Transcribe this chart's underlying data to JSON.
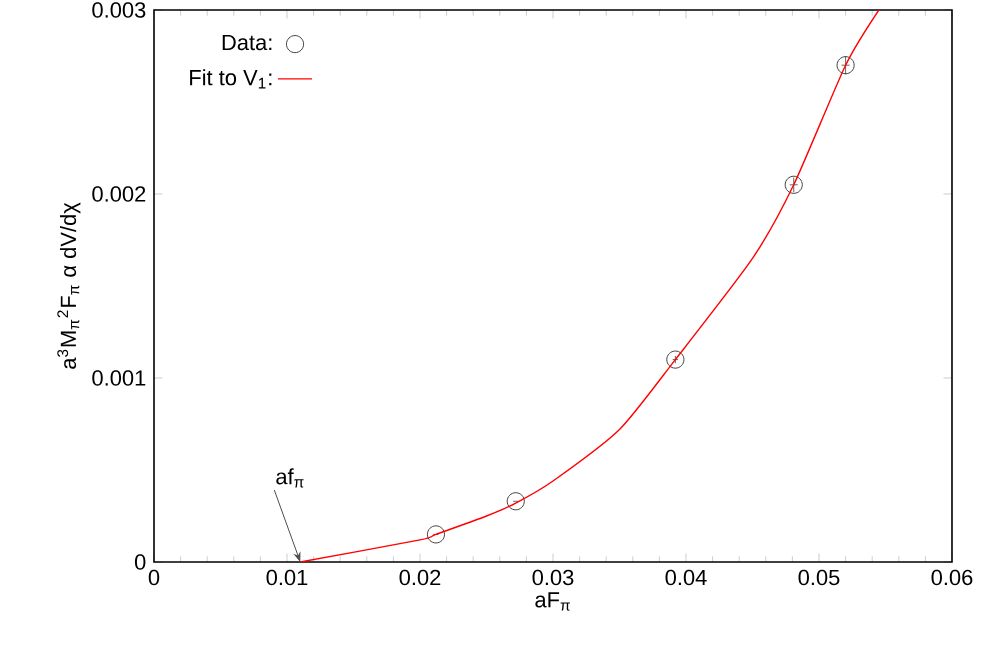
{
  "chart_data": {
    "type": "scatter",
    "xlabel": "aF$_{π}$",
    "ylabel": "a$^{3}$M$_{π}$$^{2}$F$_{π}$ α dV/dχ",
    "xlim": [
      0,
      0.06
    ],
    "xticks": [
      0,
      0.01,
      0.02,
      0.03,
      0.04,
      0.05,
      0.06
    ],
    "ylim": [
      0,
      0.003
    ],
    "yticks": [
      0,
      0.001,
      0.002,
      0.003
    ],
    "legend": "top left",
    "annotations": [
      {
        "text": "af$_{π}$",
        "x": 0.011,
        "y": 0
      }
    ],
    "series": [
      {
        "name": "Data:",
        "color": "#404040",
        "marker": "circle",
        "x": [
          0.0212,
          0.0272,
          0.0392,
          0.0481,
          0.052
        ],
        "values": [
          0.00015,
          0.00033,
          0.0011,
          0.00205,
          0.0027
        ],
        "errors": [
          null,
          null,
          2e-05,
          4e-05,
          5e-05
        ],
        "xerrors": [
          0.0002,
          0.0002,
          0.0002,
          0.0003,
          0.0003
        ]
      },
      {
        "name": "Fit to V$_{1}$:",
        "type": "line",
        "color": "#ff0000",
        "marker": "none",
        "line_style": "solid",
        "x": [
          0.011,
          0.02,
          0.0212,
          0.025,
          0.0272,
          0.03,
          0.035,
          0.0392,
          0.045,
          0.0481,
          0.052,
          0.0545
        ],
        "values": [
          0,
          0.00012,
          0.00015,
          0.00025,
          0.00032,
          0.00044,
          0.00072,
          0.0011,
          0.00165,
          0.00205,
          0.0027,
          0.003
        ]
      }
    ]
  }
}
